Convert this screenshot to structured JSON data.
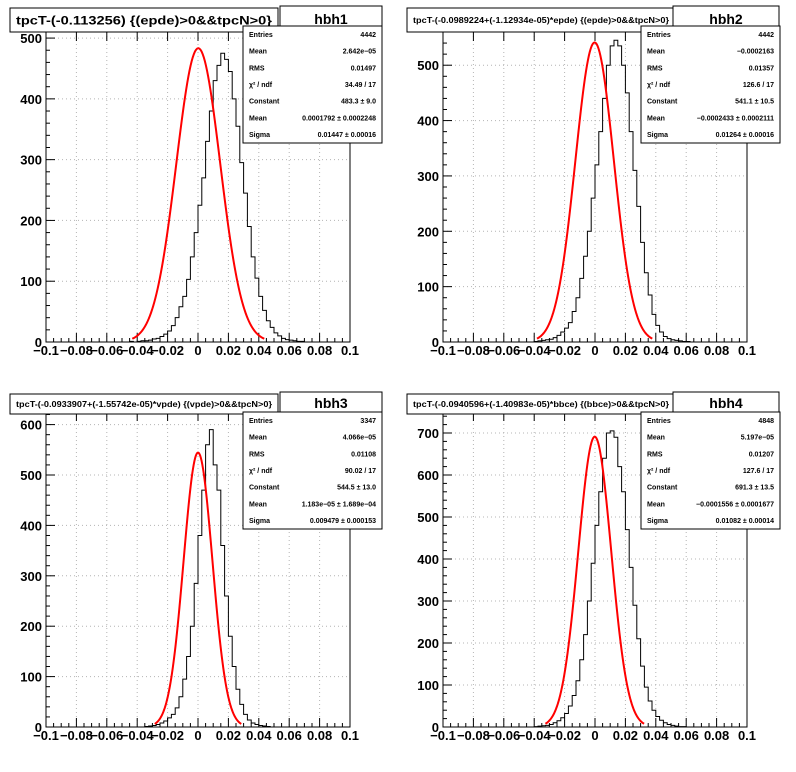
{
  "chart_data": [
    {
      "type": "histogram",
      "title": "tpcT-(-0.113256) {(epde)>0&&tpcN>0}",
      "name": "hbh1",
      "xlim": [
        -0.1,
        0.1
      ],
      "ylim": [
        0,
        510
      ],
      "x_ticks": [
        "−0.1",
        "−0.08",
        "−0.06",
        "−0.04",
        "−0.02",
        "0",
        "0.02",
        "0.04",
        "0.06",
        "0.08",
        "0.1"
      ],
      "x_tick_values": [
        -0.1,
        -0.08,
        -0.06,
        -0.04,
        -0.02,
        0,
        0.02,
        0.04,
        0.06,
        0.08,
        0.1
      ],
      "y_ticks": [
        0,
        100,
        200,
        300,
        400,
        500
      ],
      "grid": true,
      "stats": [
        {
          "label": "Entries",
          "value": "4442"
        },
        {
          "label": "Mean",
          "value": "2.642e−05"
        },
        {
          "label": "RMS",
          "value": "0.01497"
        },
        {
          "label": "χ² / ndf",
          "value": "34.49 / 17"
        },
        {
          "label": "Constant",
          "value": "483.3 ± 9.0"
        },
        {
          "label": "Mean",
          "value": "0.0001792 ± 0.0002248"
        },
        {
          "label": "Sigma",
          "value": "0.01447 ± 0.00016"
        }
      ],
      "fit": {
        "constant": 483.3,
        "mean": 0.0001792,
        "sigma": 0.01447
      },
      "bins": [
        -0.1,
        0.1
      ],
      "counts": [
        0,
        0,
        0,
        0,
        0,
        0,
        0,
        0,
        0,
        0,
        0,
        0,
        0,
        0,
        0,
        0,
        0,
        0,
        0,
        0,
        0,
        0,
        1,
        0,
        1,
        2,
        2,
        3,
        5,
        6,
        9,
        13,
        18,
        27,
        40,
        58,
        75,
        103,
        140,
        180,
        225,
        270,
        330,
        380,
        430,
        455,
        475,
        465,
        445,
        400,
        355,
        295,
        245,
        190,
        140,
        105,
        75,
        52,
        35,
        24,
        15,
        10,
        6,
        4,
        3,
        2,
        1,
        1,
        0,
        0,
        0,
        0,
        0,
        0,
        0,
        0,
        0,
        0,
        0,
        0
      ]
    },
    {
      "type": "histogram",
      "title": "tpcT-(-0.0989224+(-1.12934e-05)*epde) {(epde)>0&&tpcN>0}",
      "name": "hbh2",
      "xlim": [
        -0.1,
        0.1
      ],
      "ylim": [
        0,
        560
      ],
      "x_ticks": [
        "−0.1",
        "−0.08",
        "−0.06",
        "−0.04",
        "−0.02",
        "0",
        "0.02",
        "0.04",
        "0.06",
        "0.08",
        "0.1"
      ],
      "x_tick_values": [
        -0.1,
        -0.08,
        -0.06,
        -0.04,
        -0.02,
        0,
        0.02,
        0.04,
        0.06,
        0.08,
        0.1
      ],
      "y_ticks": [
        0,
        100,
        200,
        300,
        400,
        500
      ],
      "grid": true,
      "stats": [
        {
          "label": "Entries",
          "value": "4442"
        },
        {
          "label": "Mean",
          "value": "−0.0002163"
        },
        {
          "label": "RMS",
          "value": "0.01357"
        },
        {
          "label": "χ² / ndf",
          "value": "126.6 / 17"
        },
        {
          "label": "Constant",
          "value": "541.1 ± 10.5"
        },
        {
          "label": "Mean",
          "value": "−0.0002433 ± 0.0002111"
        },
        {
          "label": "Sigma",
          "value": "0.01264 ± 0.00016"
        }
      ],
      "fit": {
        "constant": 541.1,
        "mean": -0.0002433,
        "sigma": 0.01264
      },
      "bins": [
        -0.1,
        0.1
      ],
      "counts": [
        0,
        0,
        0,
        0,
        0,
        0,
        0,
        0,
        0,
        0,
        0,
        0,
        0,
        0,
        0,
        0,
        0,
        0,
        0,
        0,
        0,
        0,
        0,
        0,
        1,
        2,
        3,
        4,
        5,
        8,
        12,
        18,
        25,
        35,
        55,
        80,
        115,
        155,
        200,
        260,
        320,
        380,
        440,
        500,
        535,
        545,
        535,
        500,
        450,
        380,
        310,
        245,
        180,
        125,
        85,
        50,
        30,
        18,
        10,
        6,
        4,
        3,
        2,
        1,
        1,
        0,
        0,
        0,
        0,
        0,
        0,
        0,
        0,
        0,
        0,
        0,
        0,
        0,
        0,
        0
      ]
    },
    {
      "type": "histogram",
      "title": "tpcT-(-0.0933907+(-1.55742e-05)*vpde) {(vpde)>0&&tpcN>0}",
      "name": "hbh3",
      "xlim": [
        -0.1,
        0.1
      ],
      "ylim": [
        0,
        625
      ],
      "x_ticks": [
        "−0.1",
        "−0.08",
        "−0.06",
        "−0.04",
        "−0.02",
        "0",
        "0.02",
        "0.04",
        "0.06",
        "0.08",
        "0.1"
      ],
      "x_tick_values": [
        -0.1,
        -0.08,
        -0.06,
        -0.04,
        -0.02,
        0,
        0.02,
        0.04,
        0.06,
        0.08,
        0.1
      ],
      "y_ticks": [
        0,
        100,
        200,
        300,
        400,
        500,
        600
      ],
      "grid": true,
      "stats": [
        {
          "label": "Entries",
          "value": "3347"
        },
        {
          "label": "Mean",
          "value": "4.066e−05"
        },
        {
          "label": "RMS",
          "value": "0.01108"
        },
        {
          "label": "χ² / ndf",
          "value": "90.02 / 17"
        },
        {
          "label": "Constant",
          "value": "544.5 ± 13.0"
        },
        {
          "label": "Mean",
          "value": "1.183e−05 ± 1.689e−04"
        },
        {
          "label": "Sigma",
          "value": "0.009479 ± 0.000153"
        }
      ],
      "fit": {
        "constant": 544.5,
        "mean": 1.183e-05,
        "sigma": 0.009479
      },
      "bins": [
        -0.1,
        0.1
      ],
      "counts": [
        0,
        0,
        0,
        0,
        0,
        0,
        0,
        0,
        0,
        0,
        0,
        0,
        0,
        0,
        0,
        0,
        0,
        0,
        0,
        0,
        0,
        0,
        0,
        0,
        0,
        0,
        1,
        2,
        3,
        5,
        8,
        12,
        18,
        25,
        38,
        60,
        95,
        140,
        200,
        285,
        380,
        470,
        560,
        590,
        520,
        470,
        360,
        260,
        180,
        120,
        75,
        45,
        25,
        14,
        8,
        5,
        3,
        2,
        1,
        0,
        0,
        0,
        0,
        0,
        0,
        0,
        0,
        0,
        0,
        0,
        0,
        0,
        0,
        0,
        0,
        0,
        0,
        0,
        0,
        0
      ]
    },
    {
      "type": "histogram",
      "title": "tpcT-(-0.0940596+(-1.40983e-05)*bbce) {(bbce)>0&&tpcN>0}",
      "name": "hbh4",
      "xlim": [
        -0.1,
        0.1
      ],
      "ylim": [
        0,
        750
      ],
      "x_ticks": [
        "−0.1",
        "−0.08",
        "−0.06",
        "−0.04",
        "−0.02",
        "0",
        "0.02",
        "0.04",
        "0.06",
        "0.08",
        "0.1"
      ],
      "x_tick_values": [
        -0.1,
        -0.08,
        -0.06,
        -0.04,
        -0.02,
        0,
        0.02,
        0.04,
        0.06,
        0.08,
        0.1
      ],
      "y_ticks": [
        0,
        100,
        200,
        300,
        400,
        500,
        600,
        700
      ],
      "grid": true,
      "stats": [
        {
          "label": "Entries",
          "value": "4848"
        },
        {
          "label": "Mean",
          "value": "5.197e−05"
        },
        {
          "label": "RMS",
          "value": "0.01207"
        },
        {
          "label": "χ² / ndf",
          "value": "127.6 / 17"
        },
        {
          "label": "Constant",
          "value": "691.3 ± 13.5"
        },
        {
          "label": "Mean",
          "value": "−0.0001556 ± 0.0001677"
        },
        {
          "label": "Sigma",
          "value": "0.01082 ± 0.00014"
        }
      ],
      "fit": {
        "constant": 691.3,
        "mean": -0.0001556,
        "sigma": 0.01082
      },
      "bins": [
        -0.1,
        0.1
      ],
      "counts": [
        0,
        0,
        0,
        0,
        0,
        0,
        0,
        0,
        0,
        0,
        0,
        0,
        0,
        0,
        0,
        0,
        0,
        0,
        0,
        0,
        0,
        0,
        0,
        0,
        1,
        2,
        3,
        4,
        6,
        10,
        15,
        22,
        32,
        50,
        75,
        110,
        160,
        220,
        300,
        390,
        480,
        560,
        640,
        700,
        705,
        690,
        620,
        560,
        470,
        380,
        290,
        210,
        145,
        95,
        62,
        40,
        25,
        16,
        10,
        6,
        4,
        2,
        1,
        1,
        0,
        0,
        0,
        0,
        0,
        0,
        0,
        0,
        0,
        0,
        0,
        0,
        0,
        0,
        0,
        0
      ]
    }
  ]
}
